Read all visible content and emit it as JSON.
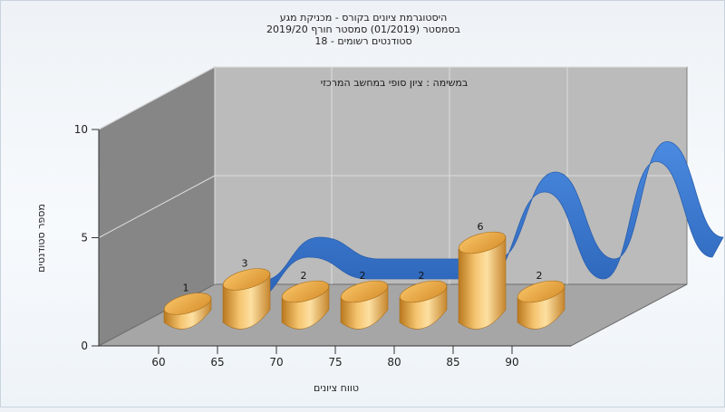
{
  "chart_data": {
    "type": "bar",
    "title_lines": [
      "היסטוגרמת ציונים בקורס - מכניקת מגע",
      "בסמסטר  (01/2019)  סמסטר חורף 2019/20",
      "סטודנטים רשומים - 18"
    ],
    "annotation": "במשימה : ציון סופי במחשב המרכזי",
    "xlabel": "טווח ציונים",
    "ylabel": "מספר סטודנטים",
    "x_ticks": [
      "60",
      "65",
      "70",
      "75",
      "80",
      "85",
      "90"
    ],
    "y_ticks": [
      "0",
      "5",
      "10"
    ],
    "ylim": [
      0,
      10
    ],
    "categories": [
      "60",
      "65",
      "70",
      "75",
      "80",
      "85",
      "90"
    ],
    "values": [
      1,
      3,
      2,
      2,
      2,
      6,
      2
    ],
    "data_labels": [
      "1",
      "3",
      "2",
      "2",
      "2",
      "6",
      "2"
    ],
    "trend_ribbon": true,
    "grid": true,
    "colors": {
      "bar": "#f0b45c",
      "ribbon": "#3a7bd5",
      "back_wall": "#b9b9b9",
      "side_wall": "#878787",
      "floor": "#a4a4a4"
    }
  }
}
